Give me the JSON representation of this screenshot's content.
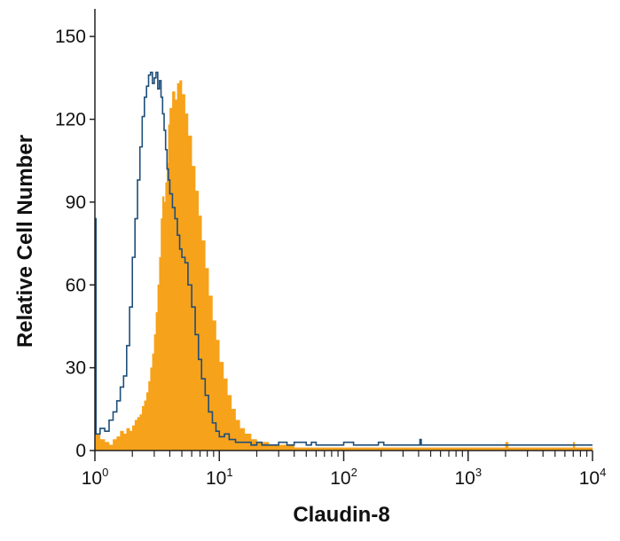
{
  "chart_data": {
    "type": "histogram",
    "title": "",
    "xlabel": "Claudin-8",
    "ylabel": "Relative Cell Number",
    "x_scale": "log",
    "xlim": [
      1,
      10000
    ],
    "ylim": [
      0,
      160
    ],
    "y_ticks": [
      0,
      30,
      60,
      90,
      120,
      150
    ],
    "y_tick_labels": [
      "0",
      "30",
      "60",
      "90",
      "120",
      "150"
    ],
    "x_ticks": [
      {
        "value": 1,
        "base": "10",
        "exp": "0"
      },
      {
        "value": 10,
        "base": "10",
        "exp": "1"
      },
      {
        "value": 100,
        "base": "10",
        "exp": "2"
      },
      {
        "value": 1000,
        "base": "10",
        "exp": "3"
      },
      {
        "value": 10000,
        "base": "10",
        "exp": "4"
      }
    ],
    "grid": false,
    "legend": "none",
    "series": [
      {
        "style": "filled",
        "color": "#F7A21B",
        "points": [
          [
            1.0,
            6
          ],
          [
            1.1,
            4
          ],
          [
            1.2,
            3
          ],
          [
            1.3,
            2
          ],
          [
            1.4,
            4
          ],
          [
            1.5,
            5
          ],
          [
            1.6,
            7
          ],
          [
            1.7,
            6
          ],
          [
            1.8,
            8
          ],
          [
            1.9,
            7
          ],
          [
            2.0,
            9
          ],
          [
            2.1,
            11
          ],
          [
            2.2,
            12
          ],
          [
            2.3,
            13
          ],
          [
            2.4,
            16
          ],
          [
            2.5,
            18
          ],
          [
            2.6,
            21
          ],
          [
            2.7,
            25
          ],
          [
            2.8,
            30
          ],
          [
            2.9,
            35
          ],
          [
            3.0,
            42
          ],
          [
            3.1,
            50
          ],
          [
            3.2,
            60
          ],
          [
            3.3,
            70
          ],
          [
            3.4,
            84
          ],
          [
            3.5,
            92
          ],
          [
            3.6,
            90
          ],
          [
            3.7,
            97
          ],
          [
            3.8,
            104
          ],
          [
            3.9,
            118
          ],
          [
            4.0,
            124
          ],
          [
            4.2,
            130
          ],
          [
            4.4,
            127
          ],
          [
            4.6,
            133
          ],
          [
            4.8,
            134
          ],
          [
            5.0,
            129
          ],
          [
            5.3,
            122
          ],
          [
            5.6,
            114
          ],
          [
            6.0,
            103
          ],
          [
            6.4,
            94
          ],
          [
            6.8,
            85
          ],
          [
            7.2,
            76
          ],
          [
            7.7,
            66
          ],
          [
            8.2,
            56
          ],
          [
            8.8,
            47
          ],
          [
            9.4,
            40
          ],
          [
            10.0,
            32
          ],
          [
            10.8,
            26
          ],
          [
            11.6,
            20
          ],
          [
            12.5,
            15
          ],
          [
            13.5,
            11
          ],
          [
            14.6,
            8
          ],
          [
            16.0,
            6
          ],
          [
            18.0,
            4
          ],
          [
            20.0,
            3
          ],
          [
            25.0,
            2
          ],
          [
            30.0,
            2
          ],
          [
            40.0,
            1
          ],
          [
            60.0,
            1
          ],
          [
            100.0,
            1
          ],
          [
            200.0,
            1
          ],
          [
            500.0,
            1
          ],
          [
            1000.0,
            1
          ],
          [
            1900.0,
            1
          ],
          [
            2000.0,
            3
          ],
          [
            2100.0,
            1
          ],
          [
            4000.0,
            1
          ],
          [
            6800.0,
            1
          ],
          [
            7000.0,
            3
          ],
          [
            7200.0,
            1
          ],
          [
            10000.0,
            1
          ]
        ]
      },
      {
        "style": "outline",
        "color": "#1F4E79",
        "points": [
          [
            1.0,
            84
          ],
          [
            1.02,
            6
          ],
          [
            1.1,
            8
          ],
          [
            1.2,
            7
          ],
          [
            1.3,
            11
          ],
          [
            1.4,
            14
          ],
          [
            1.5,
            18
          ],
          [
            1.6,
            23
          ],
          [
            1.7,
            27
          ],
          [
            1.8,
            38
          ],
          [
            1.9,
            52
          ],
          [
            2.0,
            70
          ],
          [
            2.1,
            84
          ],
          [
            2.2,
            98
          ],
          [
            2.3,
            110
          ],
          [
            2.4,
            121
          ],
          [
            2.5,
            128
          ],
          [
            2.6,
            132
          ],
          [
            2.7,
            136
          ],
          [
            2.8,
            137
          ],
          [
            2.9,
            133
          ],
          [
            3.0,
            135
          ],
          [
            3.1,
            137
          ],
          [
            3.2,
            131
          ],
          [
            3.3,
            134
          ],
          [
            3.4,
            128
          ],
          [
            3.5,
            122
          ],
          [
            3.6,
            116
          ],
          [
            3.7,
            109
          ],
          [
            3.8,
            102
          ],
          [
            3.9,
            98
          ],
          [
            4.0,
            93
          ],
          [
            4.2,
            88
          ],
          [
            4.4,
            84
          ],
          [
            4.6,
            78
          ],
          [
            4.8,
            73
          ],
          [
            5.0,
            70
          ],
          [
            5.3,
            68
          ],
          [
            5.6,
            60
          ],
          [
            6.0,
            52
          ],
          [
            6.4,
            42
          ],
          [
            6.8,
            33
          ],
          [
            7.2,
            26
          ],
          [
            7.7,
            20
          ],
          [
            8.2,
            14
          ],
          [
            8.8,
            10
          ],
          [
            9.4,
            7
          ],
          [
            10.0,
            5
          ],
          [
            11.0,
            6
          ],
          [
            12.0,
            4
          ],
          [
            13.5,
            3
          ],
          [
            15.0,
            3
          ],
          [
            18.0,
            2
          ],
          [
            20.0,
            3
          ],
          [
            22.0,
            2
          ],
          [
            25.0,
            2
          ],
          [
            30.0,
            3
          ],
          [
            35.0,
            2
          ],
          [
            40.0,
            3
          ],
          [
            50.0,
            2
          ],
          [
            55.0,
            3
          ],
          [
            60.0,
            2
          ],
          [
            80.0,
            2
          ],
          [
            100.0,
            3
          ],
          [
            120.0,
            2
          ],
          [
            190.0,
            3
          ],
          [
            200.0,
            3
          ],
          [
            210.0,
            2
          ],
          [
            400.0,
            2
          ],
          [
            410.0,
            4
          ],
          [
            420.0,
            2
          ],
          [
            1000.0,
            2
          ],
          [
            10000.0,
            2
          ]
        ]
      }
    ]
  }
}
